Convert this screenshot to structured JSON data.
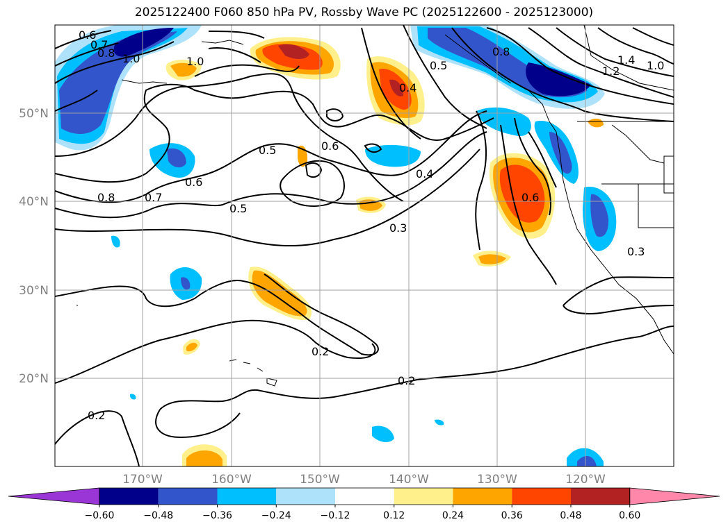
{
  "title": "2025122400 F060 850 hPa PV, Rossby Wave PC (2025122600 - 2025123000)",
  "lat_labels": [
    "50°N",
    "40°N",
    "30°N",
    "20°N"
  ],
  "lon_labels": [
    "170°W",
    "160°W",
    "150°W",
    "140°W",
    "130°W",
    "120°W"
  ],
  "colorbar": {
    "ticks": [
      "−0.60",
      "−0.48",
      "−0.36",
      "−0.24",
      "−0.12",
      "0.12",
      "0.24",
      "0.36",
      "0.48",
      "0.60"
    ],
    "colors": [
      "#9a35d6",
      "#00008b",
      "#3355cc",
      "#00bfff",
      "#aee2fa",
      "#ffffff",
      "#fff08c",
      "#ffa500",
      "#ff4500",
      "#b22222",
      "#ff88aa"
    ]
  },
  "contour_labels": [
    "0.6",
    "0.7",
    "0.8",
    "1.0",
    "0.5",
    "0.6",
    "0.4",
    "0.8",
    "1.4",
    "1.2",
    "1.0",
    "1.0",
    "0.8",
    "0.7",
    "0.6",
    "0.5",
    "0.4",
    "0.6",
    "0.5",
    "0.3",
    "0.3",
    "0.2",
    "0.2",
    "0.2"
  ]
}
